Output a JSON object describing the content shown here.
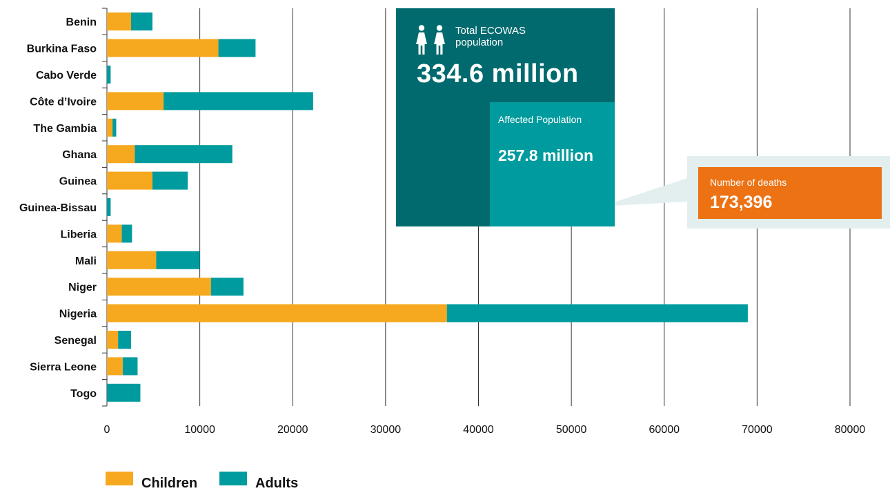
{
  "chart_data": {
    "type": "bar",
    "orientation": "horizontal",
    "stacked": true,
    "categories": [
      "Benin",
      "Burkina Faso",
      "Cabo Verde",
      "Côte d’Ivoire",
      "The Gambia",
      "Ghana",
      "Guinea",
      "Guinea-Bissau",
      "Liberia",
      "Mali",
      "Niger",
      "Nigeria",
      "Senegal",
      "Sierra Leone",
      "Togo"
    ],
    "series": [
      {
        "name": "Children",
        "color": "#f6a81e",
        "values": [
          2600,
          12000,
          0,
          6100,
          600,
          3000,
          4900,
          0,
          1600,
          5300,
          11200,
          36600,
          1200,
          1700,
          0
        ]
      },
      {
        "name": "Adults",
        "color": "#009b9e",
        "values": [
          2300,
          4000,
          400,
          16100,
          400,
          10500,
          3800,
          400,
          1100,
          4700,
          3500,
          32400,
          1400,
          1600,
          3600
        ]
      }
    ],
    "xlim": [
      0,
      80000
    ],
    "xticks": [
      "0",
      "10000",
      "20000",
      "30000",
      "40000",
      "50000",
      "60000",
      "70000",
      "80000"
    ],
    "grid": "vertical",
    "legend": "bottom-left"
  },
  "infobox": {
    "total_label": "Total ECOWAS population",
    "total_value": "334.6 million",
    "total_color": "#006a6e",
    "affected_label": "Affected Population",
    "affected_value": "257.8 million",
    "affected_color": "#009b9e",
    "icons": [
      "woman-icon",
      "woman-icon"
    ]
  },
  "deaths": {
    "label": "Number of deaths",
    "value": "173,396",
    "color": "#ec7214"
  }
}
